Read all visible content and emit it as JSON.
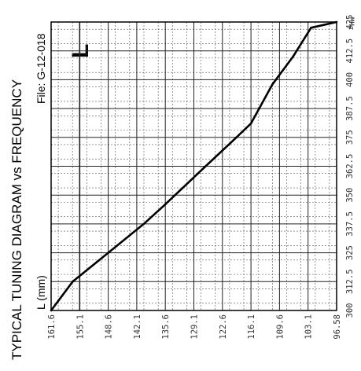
{
  "chart_data": {
    "type": "line",
    "title": "TYPICAL TUNING DIAGRAM vs FREQUENCY",
    "file_label": "File:  G-12-018",
    "mark": "L",
    "ylabel": "L (mm)",
    "xunit": "MHz",
    "xlim": [
      300,
      425
    ],
    "ylim": [
      96.58,
      161.6
    ],
    "xticks": [
      "300",
      "312.5",
      "325",
      "337.5",
      "350",
      "362.5",
      "375",
      "387.5",
      "400",
      "412.5",
      "425"
    ],
    "yticks": [
      "161.6",
      "155.1",
      "148.6",
      "142.1",
      "135.6",
      "129.1",
      "122.6",
      "116.1",
      "109.6",
      "103.1",
      "96.58"
    ],
    "series": [
      {
        "x": [
          300,
          312.5,
          325,
          337.5,
          346,
          362,
          375,
          381,
          398,
          410,
          422.5,
          425
        ],
        "y": [
          161.6,
          156.7,
          148.6,
          140.5,
          135.6,
          126.7,
          119.4,
          116.1,
          111.2,
          106.5,
          102.4,
          96.58
        ]
      }
    ]
  }
}
